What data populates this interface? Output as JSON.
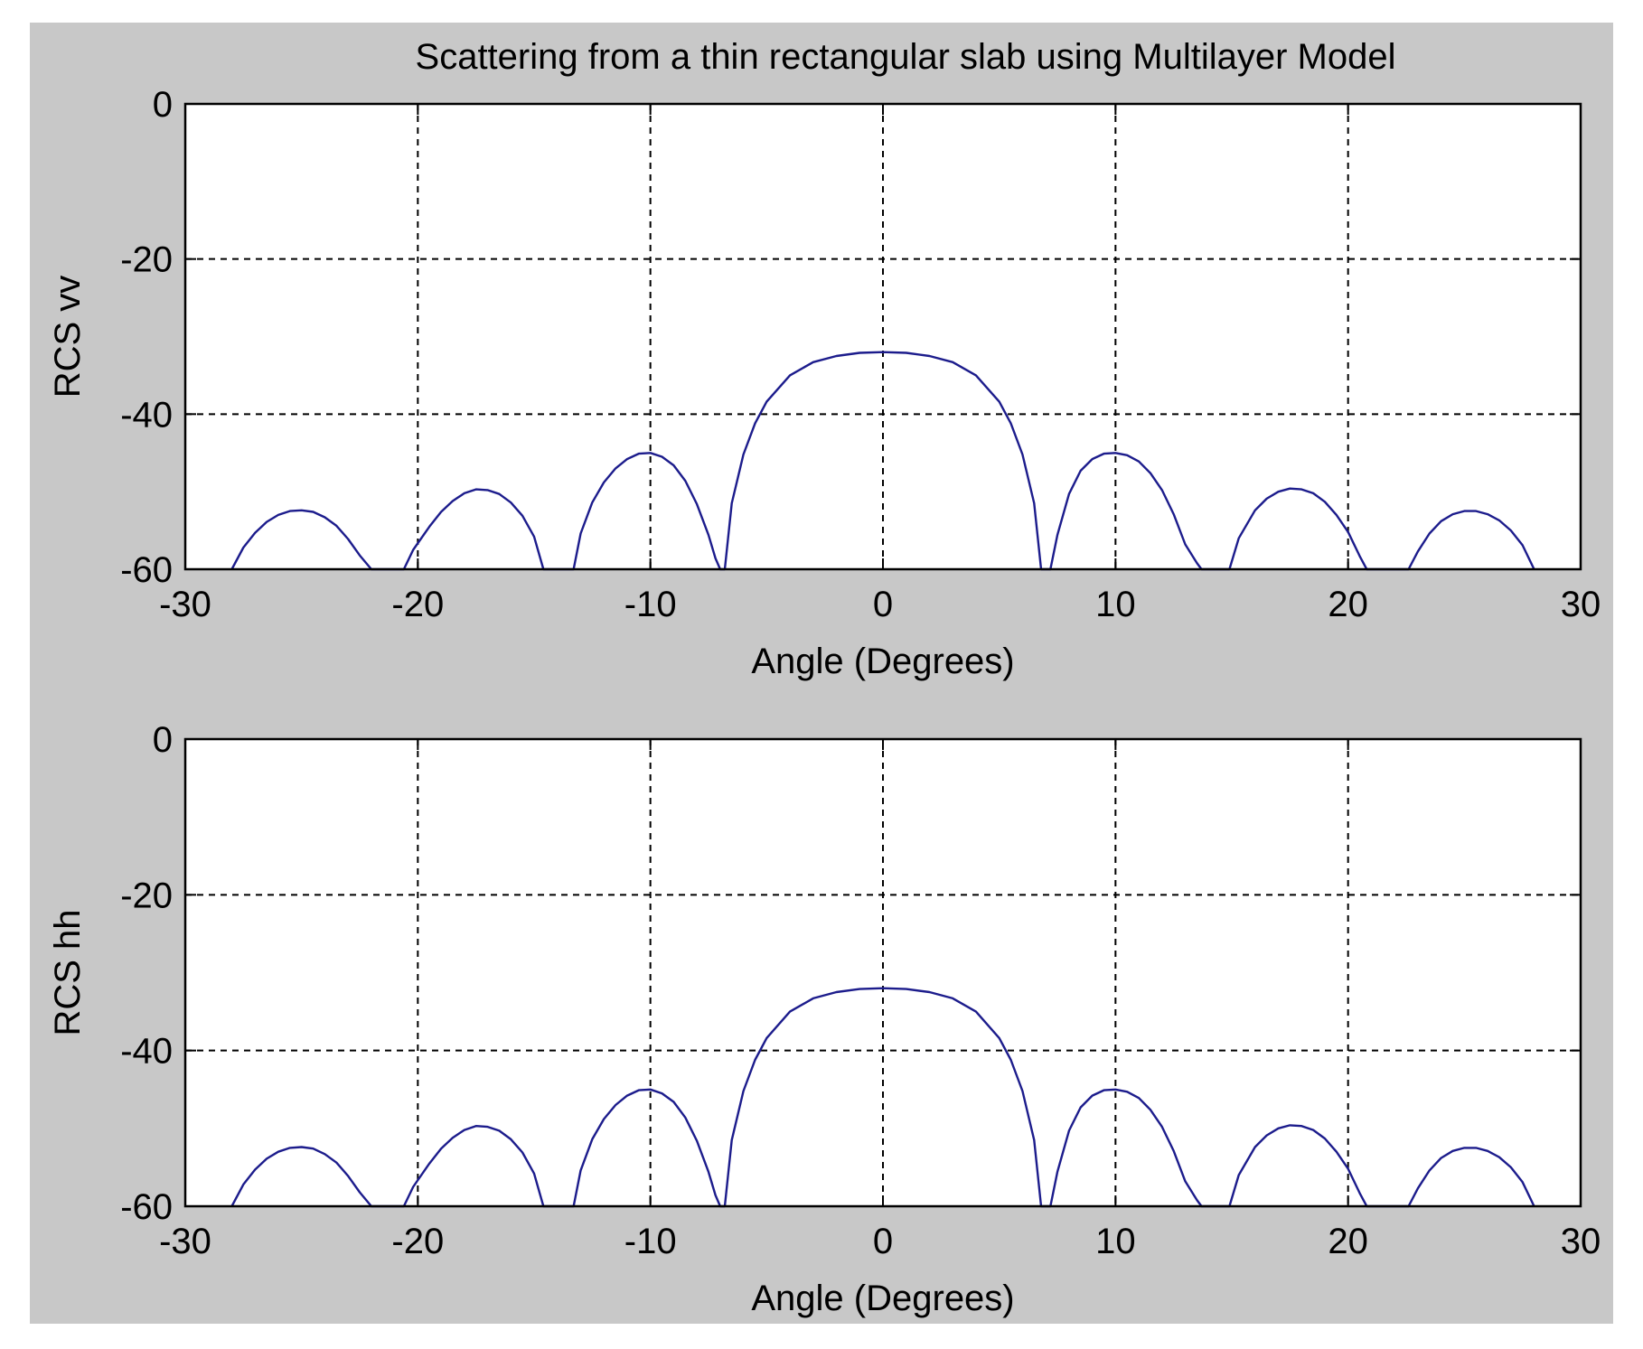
{
  "figure": {
    "background": "#c8c8c8",
    "axes_background": "#ffffff",
    "line_color": "#1c1c8c",
    "grid_color": "#000000"
  },
  "chart_data": [
    {
      "type": "line",
      "title": "Scattering from a thin rectangular slab using Multilayer Model",
      "xlabel": "Angle (Degrees)",
      "ylabel": "RCS vv",
      "xlim": [
        -30,
        30
      ],
      "ylim": [
        -60,
        0
      ],
      "xticks": [
        "-30",
        "-20",
        "-10",
        "0",
        "10",
        "20",
        "30"
      ],
      "yticks": [
        "0",
        "-20",
        "-40",
        "-60"
      ],
      "grid": true,
      "series": [
        {
          "x": [
            -28.0,
            -27.5,
            -27.0,
            -26.5,
            -26.0,
            -25.5,
            -25.0,
            -24.5,
            -24.0,
            -23.5,
            -23.0,
            -22.5,
            -22.0,
            -20.6,
            -20.2,
            -19.5,
            -19.0,
            -18.5,
            -18.0,
            -17.5,
            -17.0,
            -16.5,
            -16.0,
            -15.5,
            -15.0,
            -14.6,
            -13.3,
            -13.0,
            -12.5,
            -12.0,
            -11.5,
            -11.0,
            -10.5,
            -10.0,
            -9.5,
            -9.0,
            -8.5,
            -8.0,
            -7.5,
            -7.2,
            -7.0,
            -6.8,
            -6.5,
            -6.0,
            -5.5,
            -5.0,
            -4.0,
            -3.0,
            -2.0,
            -1.0,
            0.0,
            1.0,
            2.0,
            3.0,
            4.0,
            5.0,
            5.5,
            6.0,
            6.5,
            6.8,
            7.2,
            7.5,
            8.0,
            8.5,
            9.0,
            9.5,
            10.0,
            10.5,
            11.0,
            11.5,
            12.0,
            12.5,
            13.0,
            13.5,
            13.7,
            14.9,
            15.3,
            16.0,
            16.5,
            17.0,
            17.5,
            18.0,
            18.5,
            19.0,
            19.5,
            20.0,
            20.5,
            20.8,
            22.6,
            23.0,
            23.5,
            24.0,
            24.5,
            25.0,
            25.5,
            26.0,
            26.5,
            27.0,
            27.5,
            28.0
          ],
          "y": [
            -60,
            -57.2,
            -55.3,
            -53.9,
            -53.0,
            -52.5,
            -52.4,
            -52.6,
            -53.3,
            -54.4,
            -56.1,
            -58.2,
            -60,
            -60,
            -57.5,
            -54.5,
            -52.6,
            -51.2,
            -50.2,
            -49.7,
            -49.8,
            -50.3,
            -51.4,
            -53.1,
            -55.8,
            -60,
            -60,
            -55.4,
            -51.4,
            -48.8,
            -47.0,
            -45.8,
            -45.1,
            -45.0,
            -45.5,
            -46.6,
            -48.6,
            -51.6,
            -55.6,
            -58.6,
            -60,
            -60,
            -51.5,
            -45.2,
            -41.2,
            -38.4,
            -35.0,
            -33.3,
            -32.5,
            -32.1,
            -32.0,
            -32.1,
            -32.5,
            -33.3,
            -35.0,
            -38.4,
            -41.2,
            -45.2,
            -51.5,
            -60,
            -60,
            -55.6,
            -50.3,
            -47.3,
            -45.8,
            -45.1,
            -45.0,
            -45.3,
            -46.1,
            -47.6,
            -49.8,
            -52.9,
            -56.8,
            -59.2,
            -60,
            -60,
            -56.0,
            -52.4,
            -50.9,
            -50.0,
            -49.6,
            -49.7,
            -50.2,
            -51.3,
            -53.0,
            -55.2,
            -58.3,
            -60,
            -60,
            -57.7,
            -55.4,
            -53.8,
            -52.9,
            -52.5,
            -52.5,
            -52.9,
            -53.7,
            -55.0,
            -56.9,
            -60
          ]
        }
      ]
    },
    {
      "type": "line",
      "xlabel": "Angle (Degrees)",
      "ylabel": "RCS hh",
      "xlim": [
        -30,
        30
      ],
      "ylim": [
        -60,
        0
      ],
      "xticks": [
        "-30",
        "-20",
        "-10",
        "0",
        "10",
        "20",
        "30"
      ],
      "yticks": [
        "0",
        "-20",
        "-40",
        "-60"
      ],
      "grid": true,
      "series": [
        {
          "x": [
            -28.0,
            -27.5,
            -27.0,
            -26.5,
            -26.0,
            -25.5,
            -25.0,
            -24.5,
            -24.0,
            -23.5,
            -23.0,
            -22.5,
            -22.0,
            -20.6,
            -20.2,
            -19.5,
            -19.0,
            -18.5,
            -18.0,
            -17.5,
            -17.0,
            -16.5,
            -16.0,
            -15.5,
            -15.0,
            -14.6,
            -13.3,
            -13.0,
            -12.5,
            -12.0,
            -11.5,
            -11.0,
            -10.5,
            -10.0,
            -9.5,
            -9.0,
            -8.5,
            -8.0,
            -7.5,
            -7.2,
            -7.0,
            -6.8,
            -6.5,
            -6.0,
            -5.5,
            -5.0,
            -4.0,
            -3.0,
            -2.0,
            -1.0,
            0.0,
            1.0,
            2.0,
            3.0,
            4.0,
            5.0,
            5.5,
            6.0,
            6.5,
            6.8,
            7.2,
            7.5,
            8.0,
            8.5,
            9.0,
            9.5,
            10.0,
            10.5,
            11.0,
            11.5,
            12.0,
            12.5,
            13.0,
            13.5,
            13.7,
            14.9,
            15.3,
            16.0,
            16.5,
            17.0,
            17.5,
            18.0,
            18.5,
            19.0,
            19.5,
            20.0,
            20.5,
            20.8,
            22.6,
            23.0,
            23.5,
            24.0,
            24.5,
            25.0,
            25.5,
            26.0,
            26.5,
            27.0,
            27.5,
            28.0
          ],
          "y": [
            -60,
            -57.2,
            -55.3,
            -53.9,
            -53.0,
            -52.5,
            -52.4,
            -52.6,
            -53.3,
            -54.4,
            -56.1,
            -58.2,
            -60,
            -60,
            -57.5,
            -54.5,
            -52.6,
            -51.2,
            -50.2,
            -49.7,
            -49.8,
            -50.3,
            -51.4,
            -53.1,
            -55.8,
            -60,
            -60,
            -55.4,
            -51.4,
            -48.8,
            -47.0,
            -45.8,
            -45.1,
            -45.0,
            -45.5,
            -46.6,
            -48.6,
            -51.6,
            -55.6,
            -58.6,
            -60,
            -60,
            -51.5,
            -45.2,
            -41.2,
            -38.4,
            -35.0,
            -33.3,
            -32.5,
            -32.1,
            -32.0,
            -32.1,
            -32.5,
            -33.3,
            -35.0,
            -38.4,
            -41.2,
            -45.2,
            -51.5,
            -60,
            -60,
            -55.6,
            -50.3,
            -47.3,
            -45.8,
            -45.1,
            -45.0,
            -45.3,
            -46.1,
            -47.6,
            -49.8,
            -52.9,
            -56.8,
            -59.2,
            -60,
            -60,
            -56.0,
            -52.4,
            -50.9,
            -50.0,
            -49.6,
            -49.7,
            -50.2,
            -51.3,
            -53.0,
            -55.2,
            -58.3,
            -60,
            -60,
            -57.7,
            -55.4,
            -53.8,
            -52.9,
            -52.5,
            -52.5,
            -52.9,
            -53.7,
            -55.0,
            -56.9,
            -60
          ]
        }
      ]
    }
  ]
}
